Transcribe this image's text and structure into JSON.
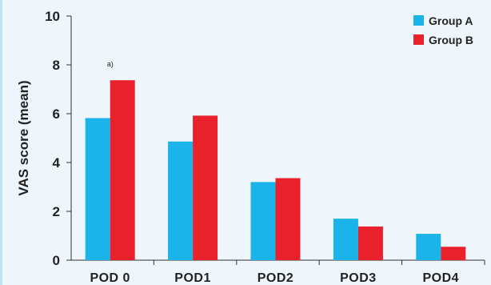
{
  "chart_data": {
    "type": "bar",
    "title": "",
    "xlabel": "",
    "ylabel": "VAS score (mean)",
    "categories": [
      "POD 0",
      "POD1",
      "POD2",
      "POD3",
      "POD4"
    ],
    "series": [
      {
        "name": "Group A",
        "color": "#1ab4ea",
        "values": [
          5.82,
          4.86,
          3.2,
          1.7,
          1.08
        ]
      },
      {
        "name": "Group B",
        "color": "#e8212a",
        "values": [
          7.37,
          5.92,
          3.36,
          1.38,
          0.55
        ]
      }
    ],
    "ylim": [
      0,
      10
    ],
    "yticks": [
      0,
      2,
      4,
      6,
      8,
      10
    ],
    "grid": false,
    "legend": "top-right",
    "annotations": [
      {
        "text": "a)",
        "category": "POD 0"
      }
    ]
  }
}
